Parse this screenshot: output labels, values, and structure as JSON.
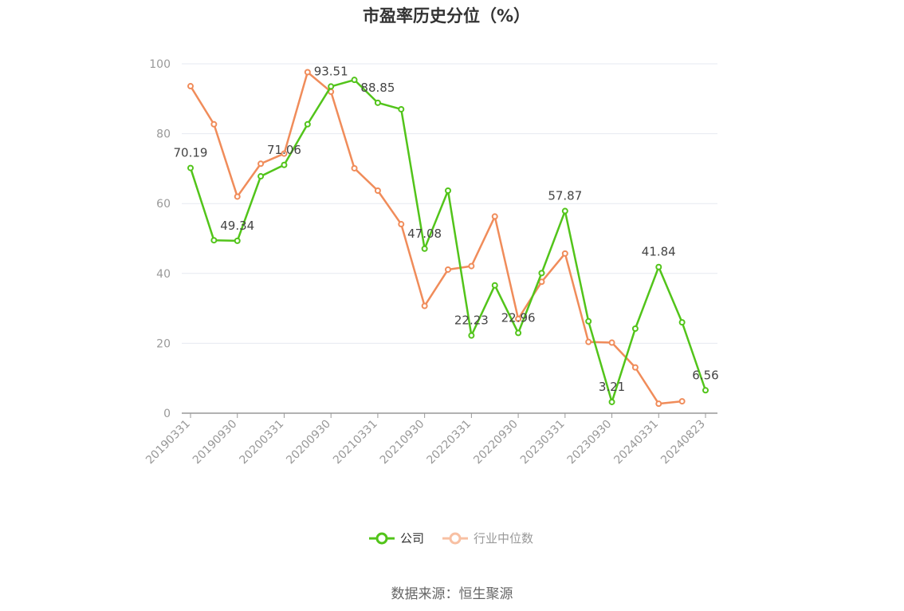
{
  "chart_data": {
    "type": "line",
    "title": "市盈率历史分位（%）",
    "categories": [
      "20190331",
      "20190630",
      "20190930",
      "20191231",
      "20200331",
      "20200630",
      "20200930",
      "20201231",
      "20210331",
      "20210630",
      "20210930",
      "20211231",
      "20220331",
      "20220630",
      "20220930",
      "20221231",
      "20230331",
      "20230630",
      "20230930",
      "20231231",
      "20240331",
      "20240630",
      "20240823"
    ],
    "x_tick_labels": [
      "20190331",
      "20190930",
      "20200331",
      "20200930",
      "20210331",
      "20210930",
      "20220331",
      "20220930",
      "20230331",
      "20230930",
      "20240331",
      "20240823"
    ],
    "series": [
      {
        "name": "公司",
        "color": "#52c41a",
        "values": [
          70.19,
          49.5,
          49.34,
          67.8,
          71.06,
          82.7,
          93.51,
          95.4,
          88.85,
          87.0,
          47.08,
          63.7,
          22.23,
          36.6,
          22.96,
          40.1,
          57.87,
          26.3,
          3.21,
          24.2,
          41.84,
          26.0,
          6.56
        ]
      },
      {
        "name": "行业中位数",
        "color": "#f08c5a",
        "values": [
          93.6,
          82.7,
          62.0,
          71.4,
          74.3,
          97.6,
          92.0,
          70.1,
          63.7,
          54.1,
          30.7,
          41.1,
          42.1,
          56.3,
          27.0,
          37.6,
          45.7,
          20.4,
          20.2,
          13.1,
          2.7,
          3.4,
          null
        ]
      }
    ],
    "data_labels": [
      {
        "index": 0,
        "text": "70.19"
      },
      {
        "index": 2,
        "text": "49.34"
      },
      {
        "index": 4,
        "text": "71.06"
      },
      {
        "index": 6,
        "text": "93.51"
      },
      {
        "index": 8,
        "text": "88.85"
      },
      {
        "index": 10,
        "text": "47.08"
      },
      {
        "index": 12,
        "text": "22.23"
      },
      {
        "index": 14,
        "text": "22.96"
      },
      {
        "index": 16,
        "text": "57.87"
      },
      {
        "index": 18,
        "text": "3.21"
      },
      {
        "index": 20,
        "text": "41.84"
      },
      {
        "index": 22,
        "text": "6.56"
      }
    ],
    "y_ticks": [
      0,
      20,
      40,
      60,
      80,
      100
    ],
    "ylim": [
      0,
      100
    ],
    "grid": true,
    "legend_position": "bottom"
  },
  "legend": {
    "company_label": "公司",
    "industry_label": "行业中位数"
  },
  "source": "数据来源：恒生聚源"
}
